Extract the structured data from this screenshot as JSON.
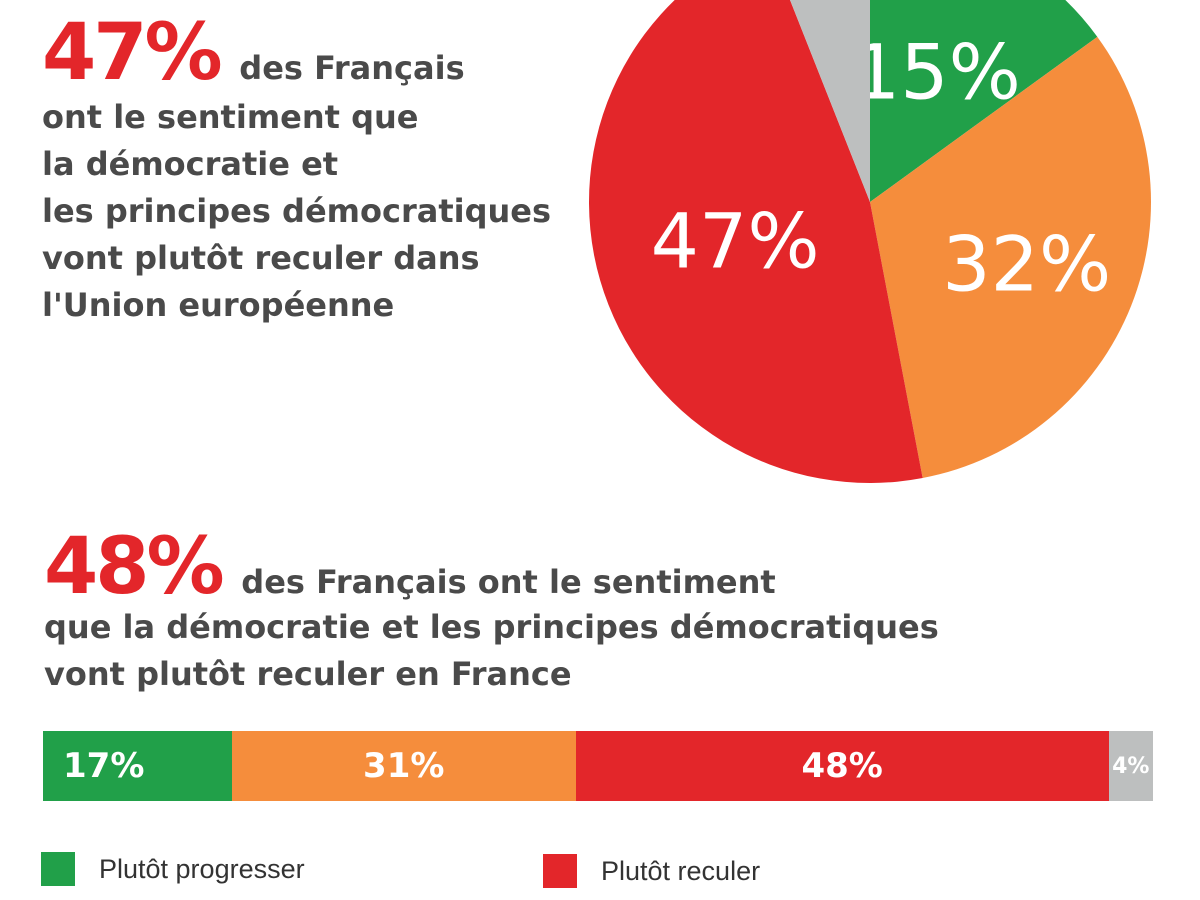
{
  "colors": {
    "progresser": "#21a049",
    "orange": "#f58d3c",
    "reculer": "#e3262a",
    "grey": "#bdbfbf",
    "text": "#4a4a4a"
  },
  "headline1": {
    "pct": "47%",
    "lines": [
      "des Français",
      "ont le sentiment que",
      "la démocratie et",
      "les principes démocratiques",
      "vont plutôt reculer dans",
      "l'Union européenne"
    ]
  },
  "headline2": {
    "pct": "48%",
    "lines": [
      "des Français ont le sentiment",
      "que la démocratie et les principes démocratiques",
      "vont plutôt reculer en France"
    ]
  },
  "chart_data": [
    {
      "type": "pie",
      "slices": [
        {
          "value": 15,
          "label": "15%",
          "color": "#21a049"
        },
        {
          "value": 32,
          "label": "32%",
          "color": "#f58d3c"
        },
        {
          "value": 47,
          "label": "47%",
          "color": "#e3262a"
        },
        {
          "value": 6,
          "label": "",
          "color": "#bdbfbf"
        }
      ]
    },
    {
      "type": "bar",
      "stacked": true,
      "orientation": "horizontal",
      "segments": [
        {
          "value": 17,
          "label": "17%",
          "color": "#21a049"
        },
        {
          "value": 31,
          "label": "31%",
          "color": "#f58d3c"
        },
        {
          "value": 48,
          "label": "48%",
          "color": "#e3262a"
        },
        {
          "value": 4,
          "label": "4%",
          "color": "#bdbfbf"
        }
      ]
    }
  ],
  "legend": [
    {
      "label": "Plutôt progresser",
      "color": "#21a049"
    },
    {
      "label": "Plutôt reculer",
      "color": "#e3262a"
    }
  ]
}
